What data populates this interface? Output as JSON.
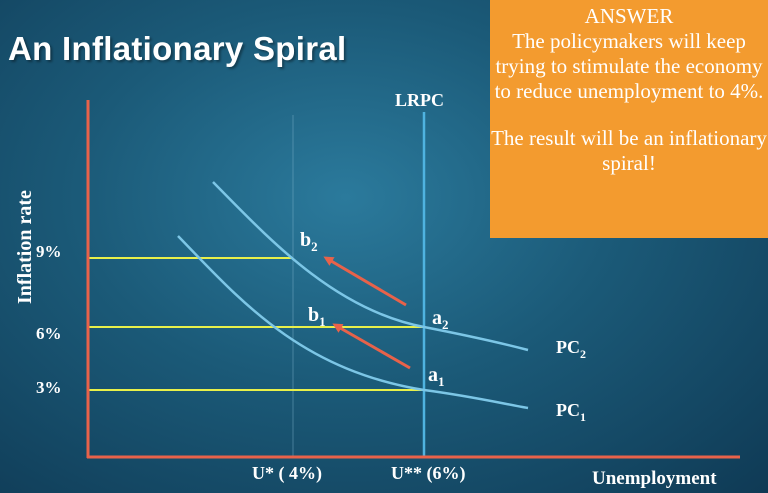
{
  "slide": {
    "title": "An Inflationary Spiral"
  },
  "answer_box": {
    "heading": "ANSWER",
    "paragraph_1": "The policymakers will keep trying to stimulate the economy to reduce unemployment to 4%.",
    "paragraph_2": "The result will be an inflationary spiral!",
    "background_color": "#f39b2f"
  },
  "diagram": {
    "y_axis_label": "Inflation rate",
    "x_axis_label": "Unemployment",
    "lrpc_label": "LRPC",
    "y_ticks": [
      "9%",
      "6%",
      "3%"
    ],
    "x_ticks": [
      "U* ( 4%)",
      "U** (6%)"
    ],
    "curves": [
      {
        "label_main": "PC",
        "label_sub": "1"
      },
      {
        "label_main": "PC",
        "label_sub": "2"
      }
    ],
    "points": [
      {
        "label_main": "a",
        "label_sub": "1"
      },
      {
        "label_main": "a",
        "label_sub": "2"
      },
      {
        "label_main": "b",
        "label_sub": "1"
      },
      {
        "label_main": "b",
        "label_sub": "2"
      }
    ],
    "colors": {
      "axes": "#e8624a",
      "curves": "#7cc6e6",
      "lrpc": "#4fb3e0",
      "reference_lines": "#e8f04a",
      "arrows": "#e8624a"
    }
  }
}
